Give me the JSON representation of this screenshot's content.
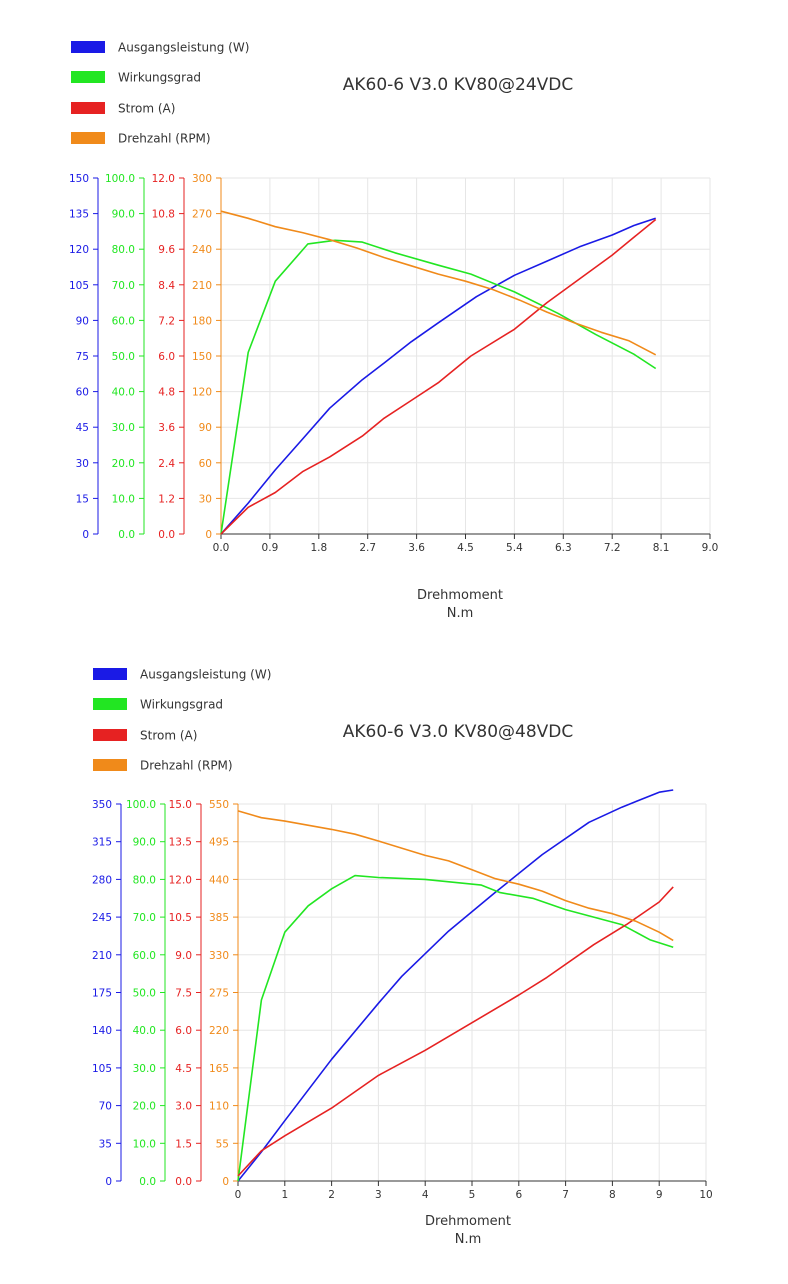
{
  "colors": {
    "blue": "#1a1ae6",
    "green": "#22e622",
    "red": "#e62222",
    "orange": "#f08a1a",
    "grid": "#e6e6e6",
    "axis": "#333333"
  },
  "chart_data": [
    {
      "type": "line",
      "title": "AK60-6 V3.0 KV80@24VDC",
      "xlabel": "Drehmoment",
      "xunit": "N.m",
      "xlim": [
        0,
        9
      ],
      "xticks": [
        "0.0",
        "0.9",
        "1.8",
        "2.7",
        "3.6",
        "4.5",
        "5.4",
        "6.3",
        "7.2",
        "8.1",
        "9.0"
      ],
      "grid": true,
      "legend": "top-left",
      "y_axes": [
        {
          "series": "Ausgangsleistung (W)",
          "color": "#1a1ae6",
          "ticks": [
            "0",
            "15",
            "30",
            "45",
            "60",
            "75",
            "90",
            "105",
            "120",
            "135",
            "150"
          ],
          "ylim": [
            0,
            150
          ]
        },
        {
          "series": "Wirkungsgrad",
          "color": "#22e622",
          "ticks": [
            "0.0",
            "10.0",
            "20.0",
            "30.0",
            "40.0",
            "50.0",
            "60.0",
            "70.0",
            "80.0",
            "90.0",
            "100.0"
          ],
          "ylim": [
            0,
            100
          ]
        },
        {
          "series": "Strom (A)",
          "color": "#e62222",
          "ticks": [
            "0.0",
            "1.2",
            "2.4",
            "3.6",
            "4.8",
            "6.0",
            "7.2",
            "8.4",
            "9.6",
            "10.8",
            "12.0"
          ],
          "ylim": [
            0,
            12
          ]
        },
        {
          "series": "Drehzahl (RPM)",
          "color": "#f08a1a",
          "ticks": [
            "0",
            "30",
            "60",
            "90",
            "120",
            "150",
            "180",
            "210",
            "240",
            "270",
            "300"
          ],
          "ylim": [
            0,
            300
          ]
        }
      ],
      "series": [
        {
          "name": "Ausgangsleistung (W)",
          "axis": 0,
          "color": "#1a1ae6",
          "x": [
            0,
            0.5,
            1.0,
            1.5,
            2.0,
            2.6,
            3.0,
            3.5,
            4.0,
            4.7,
            5.4,
            6.0,
            6.6,
            7.2,
            7.6,
            8.0
          ],
          "y": [
            0,
            13,
            27,
            40,
            53,
            65,
            72,
            81,
            89,
            100,
            109,
            115,
            121,
            126,
            130,
            133
          ]
        },
        {
          "name": "Wirkungsgrad",
          "axis": 1,
          "color": "#22e622",
          "x": [
            0,
            0.5,
            1.0,
            1.6,
            2.1,
            2.6,
            3.2,
            4.0,
            4.6,
            5.4,
            6.2,
            6.9,
            7.6,
            8.0
          ],
          "y": [
            0,
            51,
            71,
            81.5,
            82.5,
            82,
            79,
            75.5,
            73,
            68,
            62,
            56,
            50.5,
            46.5
          ]
        },
        {
          "name": "Strom (A)",
          "axis": 2,
          "color": "#e62222",
          "x": [
            0,
            0.5,
            1.0,
            1.5,
            2.0,
            2.6,
            3.0,
            3.5,
            4.0,
            4.6,
            5.4,
            6.0,
            6.6,
            7.2,
            7.6,
            8.0
          ],
          "y": [
            0,
            0.9,
            1.4,
            2.1,
            2.6,
            3.3,
            3.9,
            4.5,
            5.1,
            6.0,
            6.9,
            7.8,
            8.6,
            9.4,
            10.0,
            10.6
          ]
        },
        {
          "name": "Drehzahl (RPM)",
          "axis": 3,
          "color": "#f08a1a",
          "x": [
            0,
            0.5,
            1.0,
            1.5,
            2.0,
            2.5,
            3.0,
            3.5,
            4.0,
            4.5,
            5.0,
            5.5,
            6.0,
            6.5,
            7.0,
            7.5,
            8.0
          ],
          "y": [
            272,
            266,
            259,
            254,
            248,
            241,
            233,
            226,
            219,
            213,
            206,
            197,
            187,
            178,
            170,
            163,
            151
          ]
        }
      ]
    },
    {
      "type": "line",
      "title": "AK60-6 V3.0 KV80@48VDC",
      "xlabel": "Drehmoment",
      "xunit": "N.m",
      "xlim": [
        0,
        10
      ],
      "xticks": [
        "0",
        "1",
        "2",
        "3",
        "4",
        "5",
        "6",
        "7",
        "8",
        "9",
        "10"
      ],
      "grid": true,
      "legend": "top-left",
      "y_axes": [
        {
          "series": "Ausgangsleistung (W)",
          "color": "#1a1ae6",
          "ticks": [
            "0",
            "35",
            "70",
            "105",
            "140",
            "175",
            "210",
            "245",
            "280",
            "315",
            "350"
          ],
          "ylim": [
            0,
            350
          ]
        },
        {
          "series": "Wirkungsgrad",
          "color": "#22e622",
          "ticks": [
            "0.0",
            "10.0",
            "20.0",
            "30.0",
            "40.0",
            "50.0",
            "60.0",
            "70.0",
            "80.0",
            "90.0",
            "100.0"
          ],
          "ylim": [
            0,
            100
          ]
        },
        {
          "series": "Strom (A)",
          "color": "#e62222",
          "ticks": [
            "0.0",
            "1.5",
            "3.0",
            "4.5",
            "6.0",
            "7.5",
            "9.0",
            "10.5",
            "12.0",
            "13.5",
            "15.0"
          ],
          "ylim": [
            0,
            15
          ]
        },
        {
          "series": "Drehzahl (RPM)",
          "color": "#f08a1a",
          "ticks": [
            "0",
            "55",
            "110",
            "165",
            "220",
            "275",
            "330",
            "385",
            "440",
            "495",
            "550"
          ],
          "ylim": [
            0,
            550
          ]
        }
      ],
      "series": [
        {
          "name": "Ausgangsleistung (W)",
          "axis": 0,
          "color": "#1a1ae6",
          "x": [
            0,
            0.5,
            1.0,
            2.0,
            3.0,
            3.5,
            4.5,
            5.5,
            6.5,
            7.5,
            8.2,
            9.0,
            9.3
          ],
          "y": [
            0,
            27,
            56,
            113,
            165,
            190,
            232,
            268,
            303,
            333,
            347,
            361,
            363
          ]
        },
        {
          "name": "Wirkungsgrad",
          "axis": 1,
          "color": "#22e622",
          "x": [
            0,
            0.5,
            1.0,
            1.5,
            2.0,
            2.5,
            3.0,
            4.0,
            5.2,
            5.6,
            6.3,
            7.0,
            7.6,
            8.2,
            8.8,
            9.3
          ],
          "y": [
            0,
            48,
            66,
            73,
            77.5,
            81,
            80.5,
            80,
            78.5,
            76.5,
            75,
            72,
            70,
            68,
            64,
            62
          ]
        },
        {
          "name": "Strom (A)",
          "axis": 2,
          "color": "#e62222",
          "x": [
            0,
            0.5,
            1.0,
            2.0,
            3.0,
            4.0,
            5.0,
            6.0,
            6.6,
            7.6,
            8.3,
            9.0,
            9.3
          ],
          "y": [
            0.2,
            1.2,
            1.8,
            2.9,
            4.2,
            5.2,
            6.3,
            7.4,
            8.1,
            9.4,
            10.2,
            11.1,
            11.7
          ]
        },
        {
          "name": "Drehzahl (RPM)",
          "axis": 3,
          "color": "#f08a1a",
          "x": [
            0,
            0.5,
            1.0,
            2.0,
            2.5,
            3.0,
            4.0,
            4.5,
            5.0,
            5.5,
            6.0,
            6.5,
            7.0,
            7.5,
            8.0,
            8.5,
            9.0,
            9.3
          ],
          "y": [
            540,
            530,
            525,
            513,
            506,
            496,
            475,
            467,
            454,
            441,
            433,
            423,
            409,
            398,
            390,
            379,
            363,
            351
          ]
        }
      ]
    }
  ],
  "legend_labels": [
    "Ausgangsleistung (W)",
    "Wirkungsgrad",
    "Strom (A)",
    "Drehzahl (RPM)"
  ]
}
